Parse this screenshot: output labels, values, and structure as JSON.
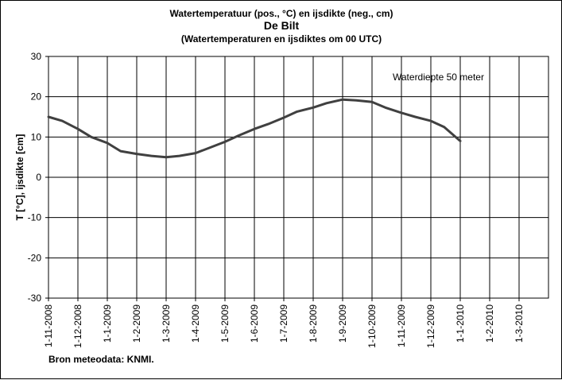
{
  "chart_data": {
    "type": "line",
    "title": "Watertemperatuur  (pos., °C) en ijsdikte (neg., cm)",
    "subtitle": "De Bilt",
    "subtitle2": "(Watertemperaturen  en ijsdiktes om 00 UTC)",
    "ylabel": "T [°C], ijsdikte [cm]",
    "xlabel": "",
    "ylim": [
      -30,
      30
    ],
    "yticks": [
      30,
      20,
      10,
      0,
      -10,
      -20,
      -30
    ],
    "xticks": [
      "1-11-2008",
      "1-12-2008",
      "1-1-2009",
      "1-2-2009",
      "1-3-2009",
      "1-4-2009",
      "1-5-2009",
      "1-6-2009",
      "1-7-2009",
      "1-8-2009",
      "1-9-2009",
      "1-10-2009",
      "1-11-2009",
      "1-12-2009",
      "1-1-2010",
      "1-2-2010",
      "1-3-2010"
    ],
    "grid": true,
    "annotation": "Waterdiepte 50 meter",
    "source": "Bron meteodata:  KNMI.",
    "line_color": "#404040",
    "series": [
      {
        "x": [
          "1-11-2008",
          "15-11-2008",
          "1-12-2008",
          "15-12-2008",
          "1-1-2009",
          "15-1-2009",
          "1-2-2009",
          "15-2-2009",
          "1-3-2009",
          "15-3-2009",
          "1-4-2009",
          "15-4-2009",
          "1-5-2009",
          "15-5-2009",
          "1-6-2009",
          "15-6-2009",
          "1-7-2009",
          "15-7-2009",
          "1-8-2009",
          "15-8-2009",
          "1-9-2009",
          "15-9-2009",
          "1-10-2009",
          "15-10-2009",
          "1-11-2009",
          "15-11-2009",
          "1-12-2009",
          "15-12-2009",
          "1-1-2010"
        ],
        "values": [
          15.0,
          14.0,
          12.0,
          10.0,
          8.5,
          6.5,
          5.8,
          5.3,
          5.0,
          5.3,
          6.0,
          7.3,
          8.8,
          10.3,
          12.0,
          13.2,
          14.8,
          16.3,
          17.3,
          18.4,
          19.3,
          19.1,
          18.7,
          17.3,
          16.0,
          15.0,
          14.0,
          12.5,
          9.0
        ]
      }
    ]
  }
}
